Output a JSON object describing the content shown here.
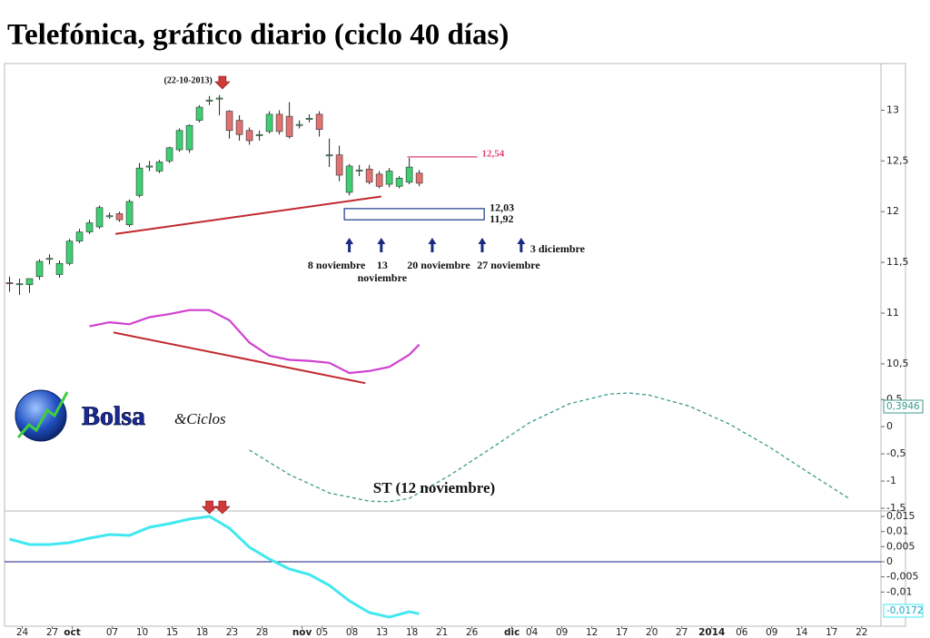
{
  "logo": {
    "name": "Bolsa",
    "suffix": "&Ciclos"
  },
  "chart_data": [
    {
      "type": "candlestick",
      "title": "Telefónica, gráfico diario (ciclo 40 días)",
      "xlim": [
        -0.5,
        87.2
      ],
      "ylim": [
        10.24,
        13.46
      ],
      "yticks": [
        {
          "value": 10.5,
          "label": "10,5"
        },
        11,
        {
          "value": 11.5,
          "label": "11,5"
        },
        12,
        {
          "value": 12.5,
          "label": "12,5"
        },
        13
      ],
      "up_color": "#3dcf72",
      "down_color": "#e07272",
      "x": [
        0,
        1,
        2,
        3,
        4,
        5,
        6,
        7,
        8,
        9,
        10,
        11,
        12,
        13,
        14,
        15,
        16,
        17,
        18,
        19,
        20,
        21,
        22,
        23,
        24,
        25,
        26,
        27,
        28,
        29,
        30,
        31,
        32,
        33,
        34,
        35,
        36,
        37,
        38,
        39,
        40,
        41
      ],
      "open": [
        11.3,
        11.29,
        11.28,
        11.36,
        11.53,
        11.38,
        11.49,
        11.71,
        11.8,
        11.85,
        11.96,
        11.98,
        11.87,
        12.16,
        12.45,
        12.4,
        12.5,
        12.61,
        12.61,
        12.9,
        13.1,
        13.12,
        12.99,
        12.9,
        12.8,
        12.76,
        12.79,
        12.96,
        12.94,
        12.86,
        12.92,
        12.96,
        12.56,
        12.56,
        12.19,
        12.41,
        12.42,
        12.37,
        12.27,
        12.25,
        12.29,
        12.38
      ],
      "high": [
        11.36,
        11.34,
        11.32,
        11.53,
        11.58,
        11.52,
        11.73,
        11.83,
        11.92,
        12.06,
        11.99,
        12.0,
        12.12,
        12.48,
        12.5,
        12.51,
        12.64,
        12.82,
        12.86,
        13.05,
        13.14,
        13.15,
        13.0,
        12.95,
        12.83,
        12.8,
        12.99,
        13.0,
        13.08,
        12.9,
        12.96,
        12.99,
        12.72,
        12.65,
        12.47,
        12.46,
        12.46,
        12.4,
        12.43,
        12.35,
        12.53,
        12.41
      ],
      "low": [
        11.21,
        11.18,
        11.2,
        11.33,
        11.48,
        11.35,
        11.47,
        11.69,
        11.78,
        11.83,
        11.93,
        11.9,
        11.85,
        12.14,
        12.4,
        12.38,
        12.48,
        12.59,
        12.58,
        12.88,
        13.05,
        12.95,
        12.72,
        12.7,
        12.66,
        12.7,
        12.77,
        12.76,
        12.72,
        12.82,
        12.88,
        12.74,
        12.44,
        12.3,
        12.16,
        12.35,
        12.27,
        12.23,
        12.24,
        12.23,
        12.27,
        12.25
      ],
      "close": [
        11.29,
        11.29,
        11.34,
        11.51,
        11.54,
        11.49,
        11.71,
        11.8,
        11.89,
        12.04,
        11.96,
        11.92,
        12.1,
        12.43,
        12.45,
        12.49,
        12.63,
        12.8,
        12.85,
        13.03,
        13.1,
        13.12,
        12.8,
        12.76,
        12.7,
        12.76,
        12.96,
        12.79,
        12.74,
        12.86,
        12.92,
        12.81,
        12.56,
        12.36,
        12.45,
        12.41,
        12.29,
        12.25,
        12.4,
        12.33,
        12.44,
        12.28
      ],
      "series": [
        {
          "color": "#d040d0",
          "x": [
            8,
            10,
            12,
            14,
            16,
            18,
            20,
            22,
            24,
            26,
            28,
            30,
            32,
            34,
            36,
            38,
            40,
            41
          ],
          "values": [
            10.87,
            10.91,
            10.89,
            10.96,
            10.99,
            11.03,
            11.03,
            10.93,
            10.71,
            10.58,
            10.54,
            10.53,
            10.51,
            10.41,
            10.43,
            10.47,
            10.59,
            10.69
          ]
        }
      ],
      "lines": [
        {
          "color": "#c0282d",
          "x": [
            10.6,
            37.2
          ],
          "values": [
            11.78,
            12.15
          ]
        },
        {
          "color": "#c0282d",
          "x": [
            10.4,
            35.6
          ],
          "values": [
            10.81,
            10.31
          ]
        }
      ],
      "level": {
        "value": 12.54,
        "label": "12,54",
        "x": [
          39.8,
          46.8
        ],
        "color": "#e0407a"
      },
      "zone": {
        "high": 12.03,
        "low": 11.92,
        "high_label": "12,03",
        "low_label": "11,92",
        "x": [
          33.5,
          47.5
        ],
        "color": "#1a3a8a"
      },
      "event": {
        "x": 21.3,
        "label": "(22-10-2013)",
        "color": "#d03a3a"
      },
      "date_arrows": [
        {
          "x": 34,
          "lines": [
            "8 noviembre"
          ]
        },
        {
          "x": 37.2,
          "lines": [
            "13",
            "noviembre"
          ]
        },
        {
          "x": 42.3,
          "lines": [
            "20 noviembre"
          ]
        },
        {
          "x": 47.3,
          "lines": [
            "27 noviembre"
          ]
        },
        {
          "x": 51.2,
          "lines": [
            "3 diciembre"
          ]
        }
      ],
      "arrow_color": "#1a2a80"
    },
    {
      "type": "line",
      "dashed": true,
      "color": "#3a9a8a",
      "xlim": [
        -0.5,
        87.2
      ],
      "ylim": [
        -1.55,
        0.67
      ],
      "yticks": [
        {
          "value": 0.5,
          "label": "0,5"
        },
        0,
        {
          "value": -0.5,
          "label": "-0,5"
        },
        -1,
        {
          "value": -1.5,
          "label": "-1,5"
        }
      ],
      "x": [
        24,
        28,
        32,
        36,
        38,
        40,
        44,
        48,
        52,
        56,
        60,
        62,
        64,
        68,
        72,
        76,
        80,
        84
      ],
      "values": [
        -0.43,
        -0.88,
        -1.22,
        -1.37,
        -1.38,
        -1.32,
        -0.9,
        -0.42,
        0.07,
        0.42,
        0.6,
        0.62,
        0.58,
        0.38,
        0.05,
        -0.37,
        -0.85,
        -1.32
      ],
      "annotation": "ST (12 noviembre)",
      "value_box": "0,3946"
    },
    {
      "type": "line",
      "color": "#40e8f0",
      "xlim": [
        -0.5,
        87.2
      ],
      "ylim": [
        -0.0213,
        0.0168
      ],
      "yticks": [
        {
          "value": 0.015,
          "label": "0,015"
        },
        {
          "value": 0.01,
          "label": "0,01"
        },
        {
          "value": 0.005,
          "label": "0,005"
        },
        0,
        {
          "value": -0.005,
          "label": "-0,005"
        },
        {
          "value": -0.01,
          "label": "-0,01"
        }
      ],
      "x": [
        0,
        2,
        4,
        6,
        8,
        10,
        12,
        14,
        16,
        18,
        20,
        22,
        24,
        26,
        28,
        30,
        32,
        34,
        36,
        38,
        40,
        41
      ],
      "values": [
        0.0075,
        0.0057,
        0.0057,
        0.0063,
        0.0078,
        0.009,
        0.0087,
        0.0114,
        0.0126,
        0.0141,
        0.015,
        0.0111,
        0.0048,
        0.0009,
        -0.0024,
        -0.0042,
        -0.0078,
        -0.0129,
        -0.0168,
        -0.0183,
        -0.0165,
        -0.0172
      ],
      "zero_line_color": "#1a1a80",
      "value_box": "-0,0172",
      "event": {
        "x": 20,
        "color": "#d03a3a"
      },
      "xticks": [
        {
          "value": 1,
          "label": "24"
        },
        {
          "value": 4,
          "label": "27"
        },
        {
          "value": 6,
          "label": "oct"
        },
        {
          "value": 10,
          "label": "07"
        },
        {
          "value": 13,
          "label": "10"
        },
        {
          "value": 16,
          "label": "15"
        },
        {
          "value": 19,
          "label": "18"
        },
        {
          "value": 22,
          "label": "23"
        },
        {
          "value": 25,
          "label": "28"
        },
        {
          "value": 29,
          "label": "nov"
        },
        {
          "value": 31,
          "label": "05"
        },
        {
          "value": 34,
          "label": "08"
        },
        {
          "value": 37,
          "label": "13"
        },
        {
          "value": 40,
          "label": "18"
        },
        {
          "value": 43,
          "label": "21"
        },
        {
          "value": 46,
          "label": "26"
        },
        {
          "value": 50,
          "label": "dic"
        },
        {
          "value": 52,
          "label": "04"
        },
        {
          "value": 55,
          "label": "09"
        },
        {
          "value": 58,
          "label": "12"
        },
        {
          "value": 61,
          "label": "17"
        },
        {
          "value": 64,
          "label": "20"
        },
        {
          "value": 67,
          "label": "27"
        },
        {
          "value": 70,
          "label": "2014"
        },
        {
          "value": 73,
          "label": "06"
        },
        {
          "value": 76,
          "label": "09"
        },
        {
          "value": 79,
          "label": "14"
        },
        {
          "value": 82,
          "label": "17"
        },
        {
          "value": 85,
          "label": "22"
        }
      ]
    }
  ]
}
